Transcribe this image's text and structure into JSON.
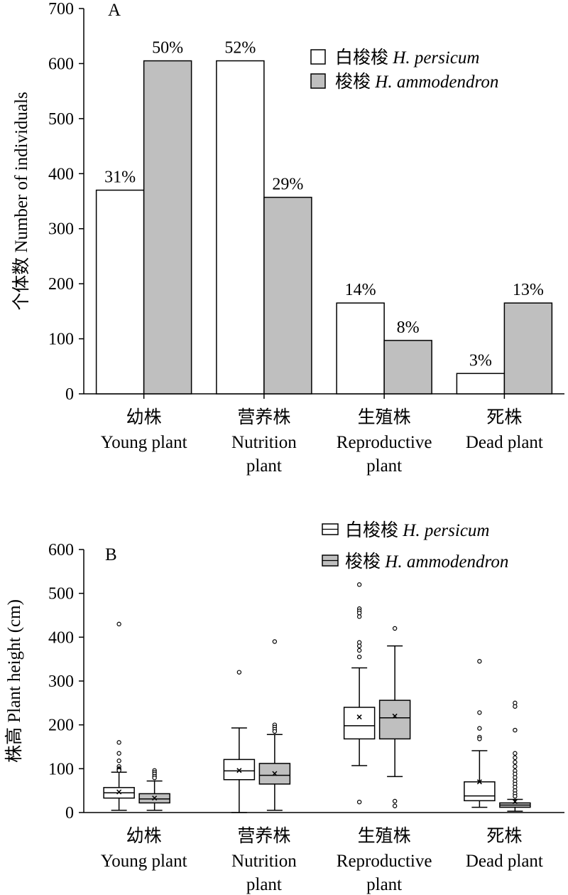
{
  "chart_data": [
    {
      "type": "bar",
      "panel": "A",
      "ylabel": "个体数 Number of individuals",
      "ylim": [
        0,
        700
      ],
      "yticks": [
        0,
        100,
        200,
        300,
        400,
        500,
        600,
        700
      ],
      "categories": [
        {
          "zh": "幼株",
          "en1": "Young plant",
          "en2": ""
        },
        {
          "zh": "营养株",
          "en1": "Nutrition",
          "en2": "plant"
        },
        {
          "zh": "生殖株",
          "en1": "Reproductive",
          "en2": "plant"
        },
        {
          "zh": "死株",
          "en1": "Dead plant",
          "en2": ""
        }
      ],
      "series": [
        {
          "name": "白梭梭",
          "name_italic": "H. persicum",
          "color": "#ffffff",
          "values": [
            370,
            605,
            165,
            37
          ],
          "labels": [
            "31%",
            "52%",
            "14%",
            "3%"
          ]
        },
        {
          "name": "梭梭",
          "name_italic": "H. ammodendron",
          "color": "#bfbfbf",
          "values": [
            605,
            357,
            97,
            165
          ],
          "labels": [
            "50%",
            "29%",
            "8%",
            "13%"
          ]
        }
      ],
      "legend_position": "top-right"
    },
    {
      "type": "box",
      "panel": "B",
      "ylabel": "株高 Plant height (cm)",
      "ylim": [
        0,
        600
      ],
      "yticks": [
        0,
        100,
        200,
        300,
        400,
        500,
        600
      ],
      "categories": [
        {
          "zh": "幼株",
          "en1": "Young plant",
          "en2": ""
        },
        {
          "zh": "营养株",
          "en1": "Nutrition",
          "en2": "plant"
        },
        {
          "zh": "生殖株",
          "en1": "Reproductive",
          "en2": "plant"
        },
        {
          "zh": "死株",
          "en1": "Dead plant",
          "en2": ""
        }
      ],
      "series": [
        {
          "name": "白梭梭",
          "name_italic": "H. persicum",
          "color": "#ffffff",
          "boxes": [
            {
              "min": 5,
              "q1": 33,
              "median": 45,
              "q3": 57,
              "max": 92,
              "mean": 47,
              "outliers": [
                430,
                160,
                135,
                118,
                105,
                100,
                98,
                96
              ]
            },
            {
              "min": 0,
              "q1": 75,
              "median": 95,
              "q3": 121,
              "max": 193,
              "mean": 96,
              "outliers": [
                320
              ]
            },
            {
              "min": 107,
              "q1": 168,
              "median": 198,
              "q3": 240,
              "max": 330,
              "mean": 218,
              "outliers": [
                520,
                465,
                460,
                455,
                447,
                388,
                380,
                370,
                355,
                24
              ]
            },
            {
              "min": 12,
              "q1": 27,
              "median": 38,
              "q3": 70,
              "max": 141,
              "mean": 70,
              "outliers": [
                345,
                228,
                192,
                172,
                168
              ]
            }
          ]
        },
        {
          "name": "梭梭",
          "name_italic": "H. ammodendron",
          "color": "#bfbfbf",
          "boxes": [
            {
              "min": 5,
              "q1": 22,
              "median": 31,
              "q3": 43,
              "max": 72,
              "mean": 33,
              "outliers": [
                96,
                92,
                88,
                83,
                79
              ]
            },
            {
              "min": 5,
              "q1": 65,
              "median": 85,
              "q3": 112,
              "max": 178,
              "mean": 89,
              "outliers": [
                390,
                200,
                195,
                190,
                185
              ]
            },
            {
              "min": 82,
              "q1": 168,
              "median": 216,
              "q3": 256,
              "max": 380,
              "mean": 220,
              "outliers": [
                420,
                26,
                15
              ]
            },
            {
              "min": 3,
              "q1": 12,
              "median": 17,
              "q3": 22,
              "max": 30,
              "mean": 25,
              "outliers": [
                250,
                242,
                188,
                135,
                125,
                115,
                105,
                95,
                88,
                80,
                72,
                65,
                58,
                50,
                43,
                37
              ]
            }
          ]
        }
      ],
      "legend_position": "top-right"
    }
  ]
}
